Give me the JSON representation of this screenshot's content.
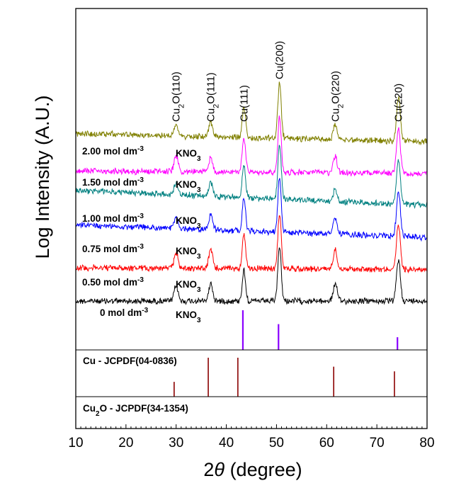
{
  "chart_data": {
    "type": "line",
    "xlabel_prefix": "2",
    "xlabel_theta": "θ",
    "xlabel_suffix": " (degree)",
    "ylabel": "Log Intensity (A.U.)",
    "xlim": [
      10,
      80
    ],
    "xticks": [
      10,
      20,
      30,
      40,
      50,
      60,
      70,
      80
    ],
    "peaks": [
      {
        "pos": 30.0,
        "base": "Cu",
        "sub": "2",
        "rest": "O(110)"
      },
      {
        "pos": 36.9,
        "base": "Cu",
        "sub": "2",
        "rest": "O(111)"
      },
      {
        "pos": 43.5,
        "base": "Cu(111)",
        "sub": "",
        "rest": ""
      },
      {
        "pos": 50.6,
        "base": "Cu(200)",
        "sub": "",
        "rest": ""
      },
      {
        "pos": 61.7,
        "base": "Cu",
        "sub": "2",
        "rest": "O(220)"
      },
      {
        "pos": 74.3,
        "base": "Cu(220)",
        "sub": "",
        "rest": ""
      }
    ],
    "series": [
      {
        "name": "0 mol dm-3 KNO3",
        "conc": "0 mol dm",
        "exp": "-3",
        "salt": "KNO",
        "salt_sub": "3",
        "color": "#000000",
        "offset": 0,
        "tilt": 0.0,
        "amps": [
          0.28,
          0.32,
          0.55,
          1.0,
          0.32,
          0.75
        ]
      },
      {
        "name": "0.50 mol dm-3 KNO3",
        "conc": "0.50 mol dm",
        "exp": "-3",
        "salt": "KNO",
        "salt_sub": "3",
        "color": "#ff0000",
        "offset": 1,
        "tilt": 0.05,
        "amps": [
          0.3,
          0.34,
          0.6,
          1.0,
          0.36,
          0.8
        ]
      },
      {
        "name": "0.75 mol dm-3 KNO3",
        "conc": "0.75 mol dm",
        "exp": "-3",
        "salt": "KNO",
        "salt_sub": "3",
        "color": "#0000ff",
        "offset": 2,
        "tilt": 0.45,
        "amps": [
          0.2,
          0.28,
          0.58,
          1.0,
          0.28,
          0.8
        ]
      },
      {
        "name": "1.00 mol dm-3 KNO3",
        "conc": "1.00 mol dm",
        "exp": "-3",
        "salt": "KNO",
        "salt_sub": "3",
        "color": "#008080",
        "offset": 3,
        "tilt": 0.55,
        "amps": [
          0.22,
          0.24,
          0.6,
          1.0,
          0.22,
          0.78
        ]
      },
      {
        "name": "1.50 mol dm-3 KNO3",
        "conc": "1.50 mol dm",
        "exp": "-3",
        "salt": "KNO",
        "salt_sub": "3",
        "color": "#ff00ff",
        "offset": 4,
        "tilt": 0.1,
        "amps": [
          0.28,
          0.26,
          0.62,
          1.0,
          0.3,
          0.8
        ]
      },
      {
        "name": "2.00 mol dm-3 KNO3",
        "conc": "2.00 mol dm",
        "exp": "-3",
        "salt": "KNO",
        "salt_sub": "3",
        "color": "#808000",
        "offset": 5,
        "tilt": 0.3,
        "amps": [
          0.2,
          0.26,
          0.55,
          1.0,
          0.28,
          0.78
        ]
      }
    ],
    "references": [
      {
        "name": "Cu - JCPDF(04-0836)",
        "color": "#8a00ff",
        "lines": [
          {
            "pos": 43.3,
            "rel": 1.0
          },
          {
            "pos": 50.4,
            "rel": 0.65
          },
          {
            "pos": 74.1,
            "rel": 0.32
          }
        ]
      },
      {
        "name": "Cu2O - JCPDF(34-1354)",
        "base": "Cu",
        "sub": "2",
        "rest": "O - JCPDF(34-1354)",
        "color": "#8b0000",
        "lines": [
          {
            "pos": 29.6,
            "rel": 0.38
          },
          {
            "pos": 36.4,
            "rel": 1.0
          },
          {
            "pos": 42.3,
            "rel": 1.0
          },
          {
            "pos": 61.4,
            "rel": 0.77
          },
          {
            "pos": 73.5,
            "rel": 0.65
          }
        ]
      }
    ],
    "ref_label_cu": "Cu - JCPDF(04-0836)",
    "grid": false,
    "legend": "inline-left"
  }
}
